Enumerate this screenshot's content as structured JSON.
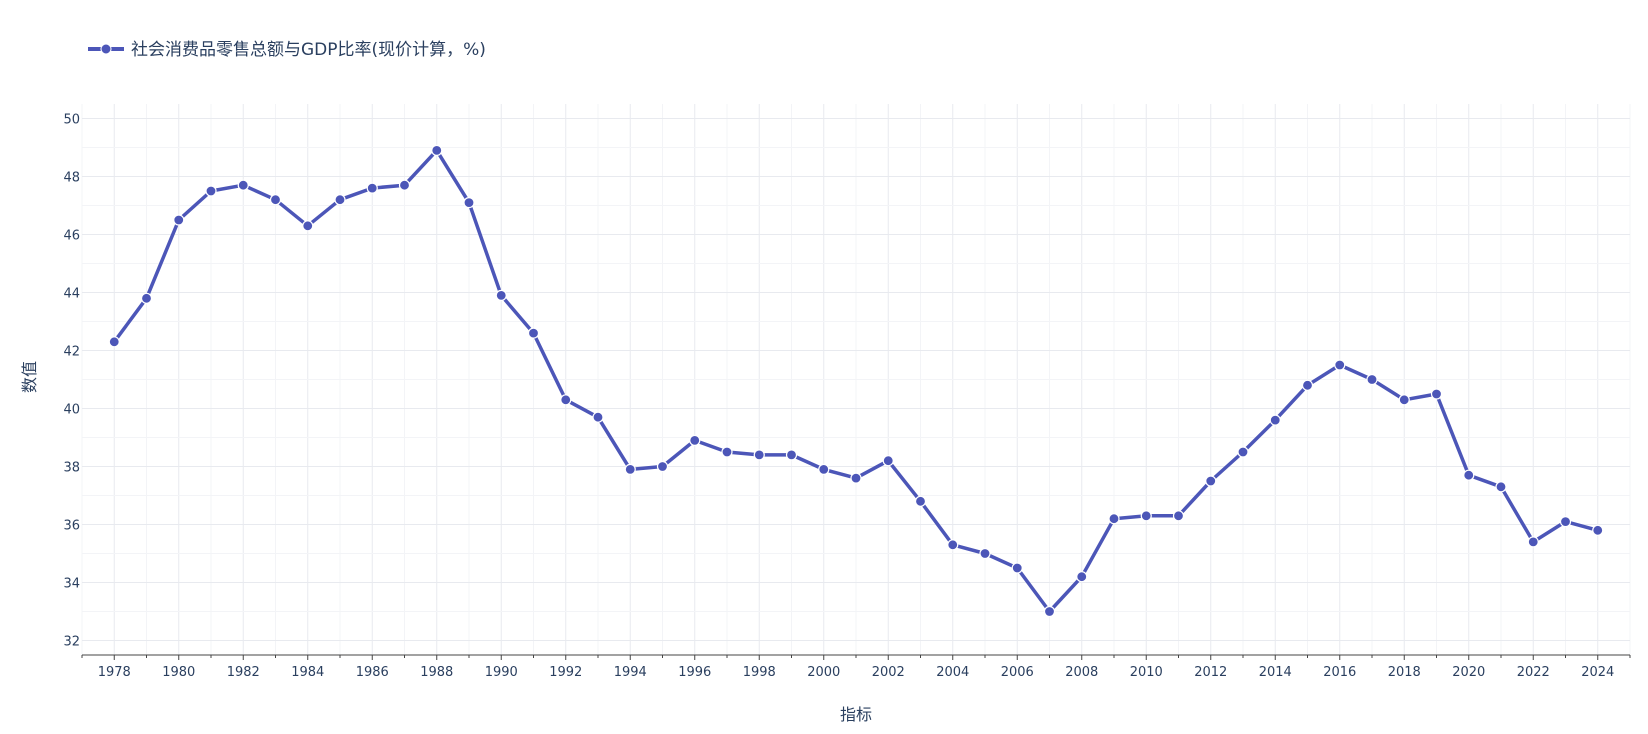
{
  "chart_data": {
    "type": "line",
    "title": "",
    "xlabel": "指标",
    "ylabel": "数值",
    "xlim": [
      1977,
      2025
    ],
    "ylim": [
      31.5,
      50.5
    ],
    "x_ticks": [
      1978,
      1980,
      1982,
      1984,
      1986,
      1988,
      1990,
      1992,
      1994,
      1996,
      1998,
      2000,
      2002,
      2004,
      2006,
      2008,
      2010,
      2012,
      2014,
      2016,
      2018,
      2020,
      2022,
      2024
    ],
    "y_ticks": [
      32,
      34,
      36,
      38,
      40,
      42,
      44,
      46,
      48,
      50
    ],
    "grid": true,
    "legend_position": "top-left",
    "x": [
      1978,
      1979,
      1980,
      1981,
      1982,
      1983,
      1984,
      1985,
      1986,
      1987,
      1988,
      1989,
      1990,
      1991,
      1992,
      1993,
      1994,
      1995,
      1996,
      1997,
      1998,
      1999,
      2000,
      2001,
      2002,
      2003,
      2004,
      2005,
      2006,
      2007,
      2008,
      2009,
      2010,
      2011,
      2012,
      2013,
      2014,
      2015,
      2016,
      2017,
      2018,
      2019,
      2020,
      2021,
      2022,
      2023,
      2024
    ],
    "series": [
      {
        "name": "社会消费品零售总额与GDP比率(现价计算，%)",
        "color": "#4c56b8",
        "values": [
          42.3,
          43.8,
          46.5,
          47.5,
          47.7,
          47.2,
          46.3,
          47.2,
          47.6,
          47.7,
          48.9,
          47.1,
          43.9,
          42.6,
          40.3,
          39.7,
          37.9,
          38.0,
          38.9,
          38.5,
          38.4,
          38.4,
          37.9,
          37.6,
          38.2,
          36.8,
          35.3,
          35.0,
          34.5,
          33.0,
          34.2,
          36.2,
          36.3,
          36.3,
          37.5,
          38.5,
          39.6,
          40.8,
          41.5,
          41.0,
          40.3,
          40.5,
          37.7,
          37.3,
          35.4,
          36.1,
          35.8
        ]
      }
    ]
  }
}
